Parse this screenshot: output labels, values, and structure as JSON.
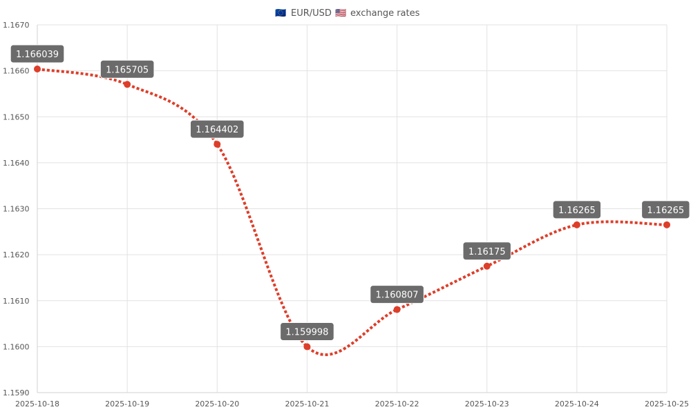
{
  "chart_title": {
    "flag_left": "🇪🇺",
    "main": "EUR/USD",
    "flag_right": "🇺🇸",
    "suffix": "exchange rates"
  },
  "chart_data": {
    "type": "line",
    "title": "EUR/USD exchange rates",
    "categories": [
      "2025-10-18",
      "2025-10-19",
      "2025-10-20",
      "2025-10-21",
      "2025-10-22",
      "2025-10-23",
      "2025-10-24",
      "2025-10-25"
    ],
    "series": [
      {
        "values": [
          1.166039,
          1.165705,
          1.164402,
          1.159998,
          1.160807,
          1.16175,
          1.16265,
          1.16265
        ],
        "labels": [
          "1.166039",
          "1.165705",
          "1.164402",
          "1.159998",
          "1.160807",
          "1.16175",
          "1.16265",
          "1.16265"
        ],
        "color": "#dd3e2a"
      }
    ],
    "ylim": [
      1.159,
      1.167
    ],
    "yticks": [
      "1.1590",
      "1.1600",
      "1.1610",
      "1.1620",
      "1.1630",
      "1.1640",
      "1.1650",
      "1.1660",
      "1.1670"
    ],
    "ytick_values": [
      1.159,
      1.16,
      1.161,
      1.162,
      1.163,
      1.164,
      1.165,
      1.166,
      1.167
    ],
    "grid": true,
    "line_style": "dotted",
    "smooth": true
  }
}
